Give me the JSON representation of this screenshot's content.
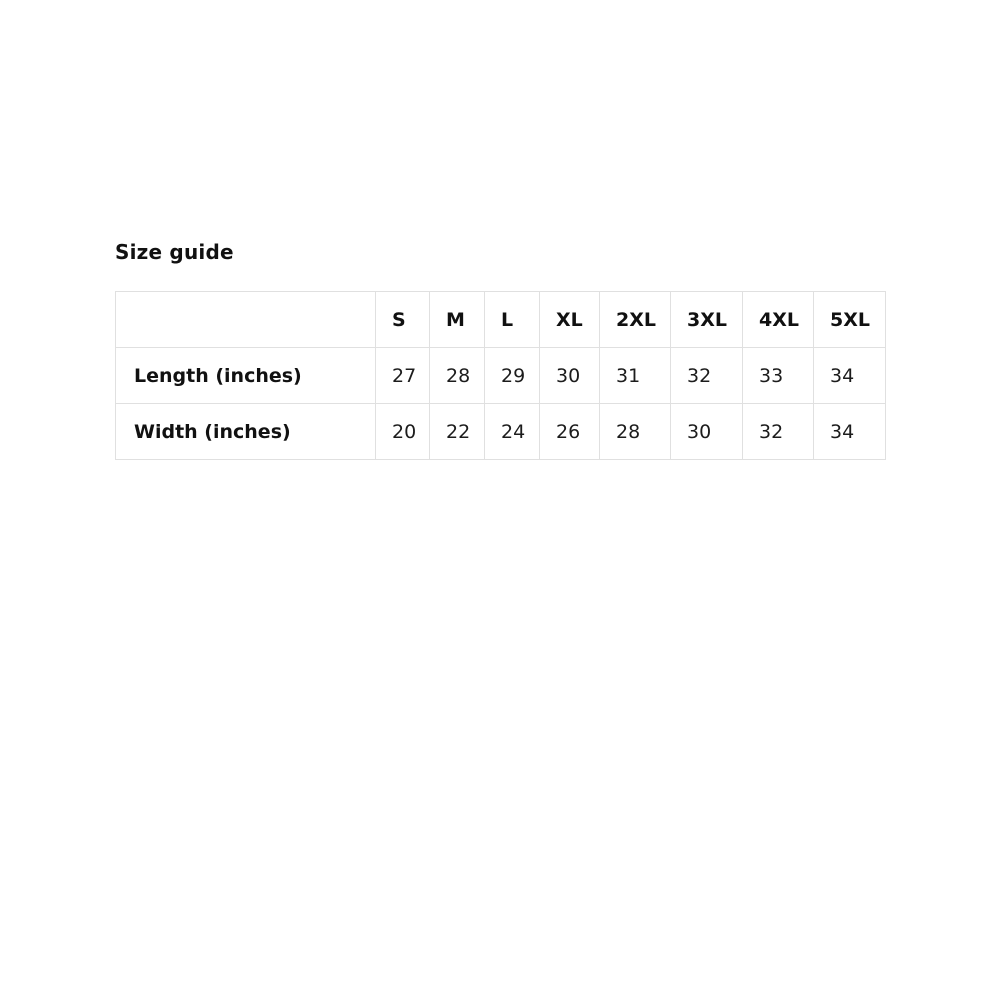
{
  "title": "Size guide",
  "table": {
    "header": [
      "",
      "S",
      "M",
      "L",
      "XL",
      "2XL",
      "3XL",
      "4XL",
      "5XL"
    ],
    "rows": [
      {
        "label": "Length (inches)",
        "values": [
          "27",
          "28",
          "29",
          "30",
          "31",
          "32",
          "33",
          "34"
        ]
      },
      {
        "label": "Width (inches)",
        "values": [
          "20",
          "22",
          "24",
          "26",
          "28",
          "30",
          "32",
          "34"
        ]
      }
    ]
  },
  "colors": {
    "border": "#e0e0e0",
    "text": "#111111",
    "background": "#ffffff"
  }
}
